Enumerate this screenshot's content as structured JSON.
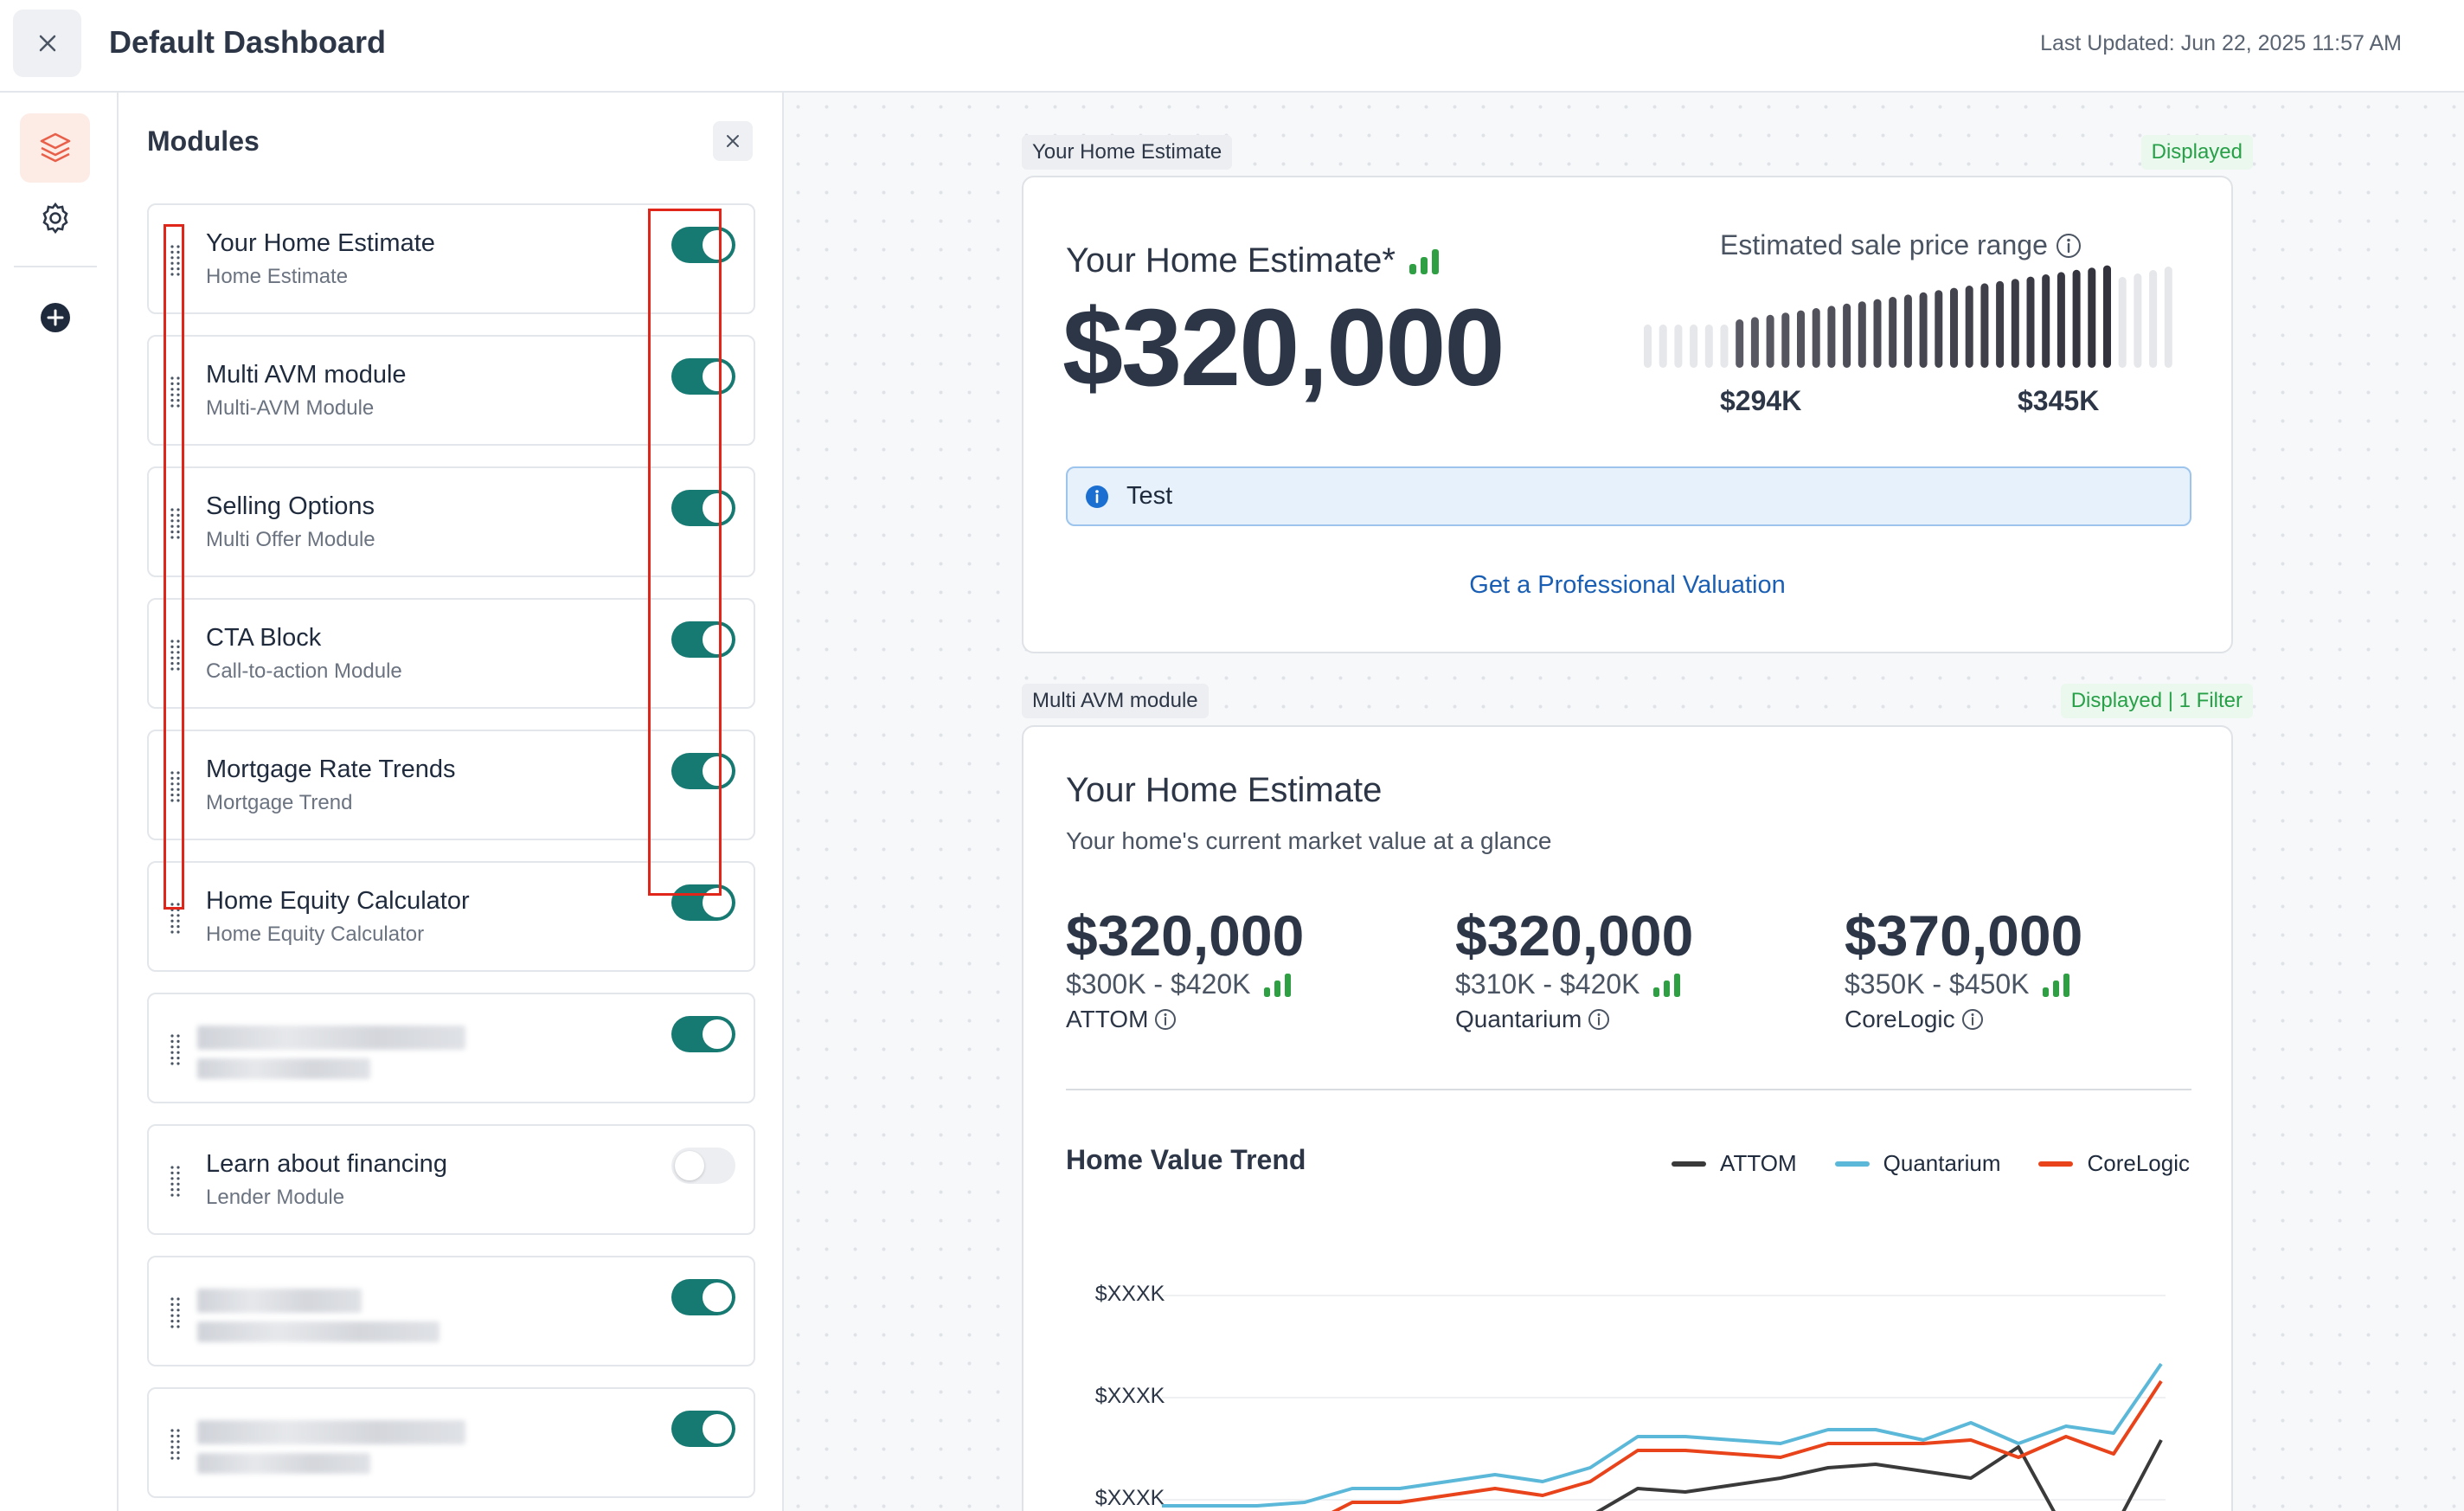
{
  "header": {
    "title": "Default Dashboard",
    "last_updated": "Last Updated: Jun 22, 2025 11:57 AM"
  },
  "rail": {
    "icons": [
      "layers-icon",
      "gear-icon",
      "plus-circle-icon"
    ]
  },
  "panel": {
    "title": "Modules",
    "modules": [
      {
        "title": "Your Home Estimate",
        "subtitle": "Home Estimate",
        "enabled": true
      },
      {
        "title": "Multi AVM module",
        "subtitle": "Multi-AVM Module",
        "enabled": true
      },
      {
        "title": "Selling Options",
        "subtitle": "Multi Offer Module",
        "enabled": true
      },
      {
        "title": "CTA Block",
        "subtitle": "Call-to-action Module",
        "enabled": true
      },
      {
        "title": "Mortgage Rate Trends",
        "subtitle": "Mortgage Trend",
        "enabled": true
      },
      {
        "title": "Home Equity Calculator",
        "subtitle": "Home Equity Calculator",
        "enabled": true
      },
      {
        "title": "",
        "subtitle": "",
        "enabled": true,
        "redacted": true
      },
      {
        "title": "Learn about financing",
        "subtitle": "Lender Module",
        "enabled": false
      },
      {
        "title": "",
        "subtitle": "",
        "enabled": true,
        "redacted": true
      },
      {
        "title": "",
        "subtitle": "",
        "enabled": true,
        "redacted": true
      }
    ]
  },
  "estimate": {
    "tag": "Your Home Estimate",
    "status": "Displayed",
    "heading": "Your Home Estimate*",
    "value": "$320,000",
    "range_label": "Estimated sale price range",
    "range_low": "$294K",
    "range_high": "$345K",
    "notice": "Test",
    "cta": "Get a Professional Valuation"
  },
  "multi_avm": {
    "tag": "Multi AVM module",
    "status": "Displayed | 1 Filter",
    "heading": "Your Home Estimate",
    "subheading": "Your home's current market value at a glance",
    "providers": [
      {
        "value": "$320,000",
        "range": "$300K - $420K",
        "name": "ATTOM"
      },
      {
        "value": "$320,000",
        "range": "$310K - $420K",
        "name": "Quantarium"
      },
      {
        "value": "$370,000",
        "range": "$350K - $450K",
        "name": "CoreLogic"
      }
    ],
    "trend_title": "Home Value Trend"
  },
  "colors": {
    "accent_teal": "#177a72",
    "attom": "#3a3a3a",
    "quantarium": "#5bb8d8",
    "corelogic": "#e8431a",
    "green": "#2ea043"
  },
  "chart_data": {
    "type": "line",
    "title": "Home Value Trend",
    "y_tick_labels": [
      "$XXXK",
      "$XXXK",
      "$XXXK"
    ],
    "series": [
      {
        "name": "ATTOM",
        "color": "#3a3a3a",
        "values": [
          20,
          19,
          18,
          20,
          22,
          24,
          25,
          26,
          28,
          27,
          35,
          34,
          36,
          38,
          41,
          42,
          40,
          38,
          47,
          22,
          23,
          49
        ]
      },
      {
        "name": "Quantarium",
        "color": "#5bb8d8",
        "values": [
          30,
          30,
          30,
          31,
          35,
          35,
          37,
          39,
          37,
          41,
          50,
          50,
          49,
          48,
          52,
          52,
          49,
          54,
          48,
          53,
          51,
          71
        ]
      },
      {
        "name": "CoreLogic",
        "color": "#e8431a",
        "values": [
          20,
          20,
          20,
          24,
          31,
          31,
          33,
          35,
          33,
          37,
          46,
          46,
          45,
          44,
          48,
          48,
          48,
          49,
          44,
          50,
          45,
          66
        ]
      }
    ]
  }
}
